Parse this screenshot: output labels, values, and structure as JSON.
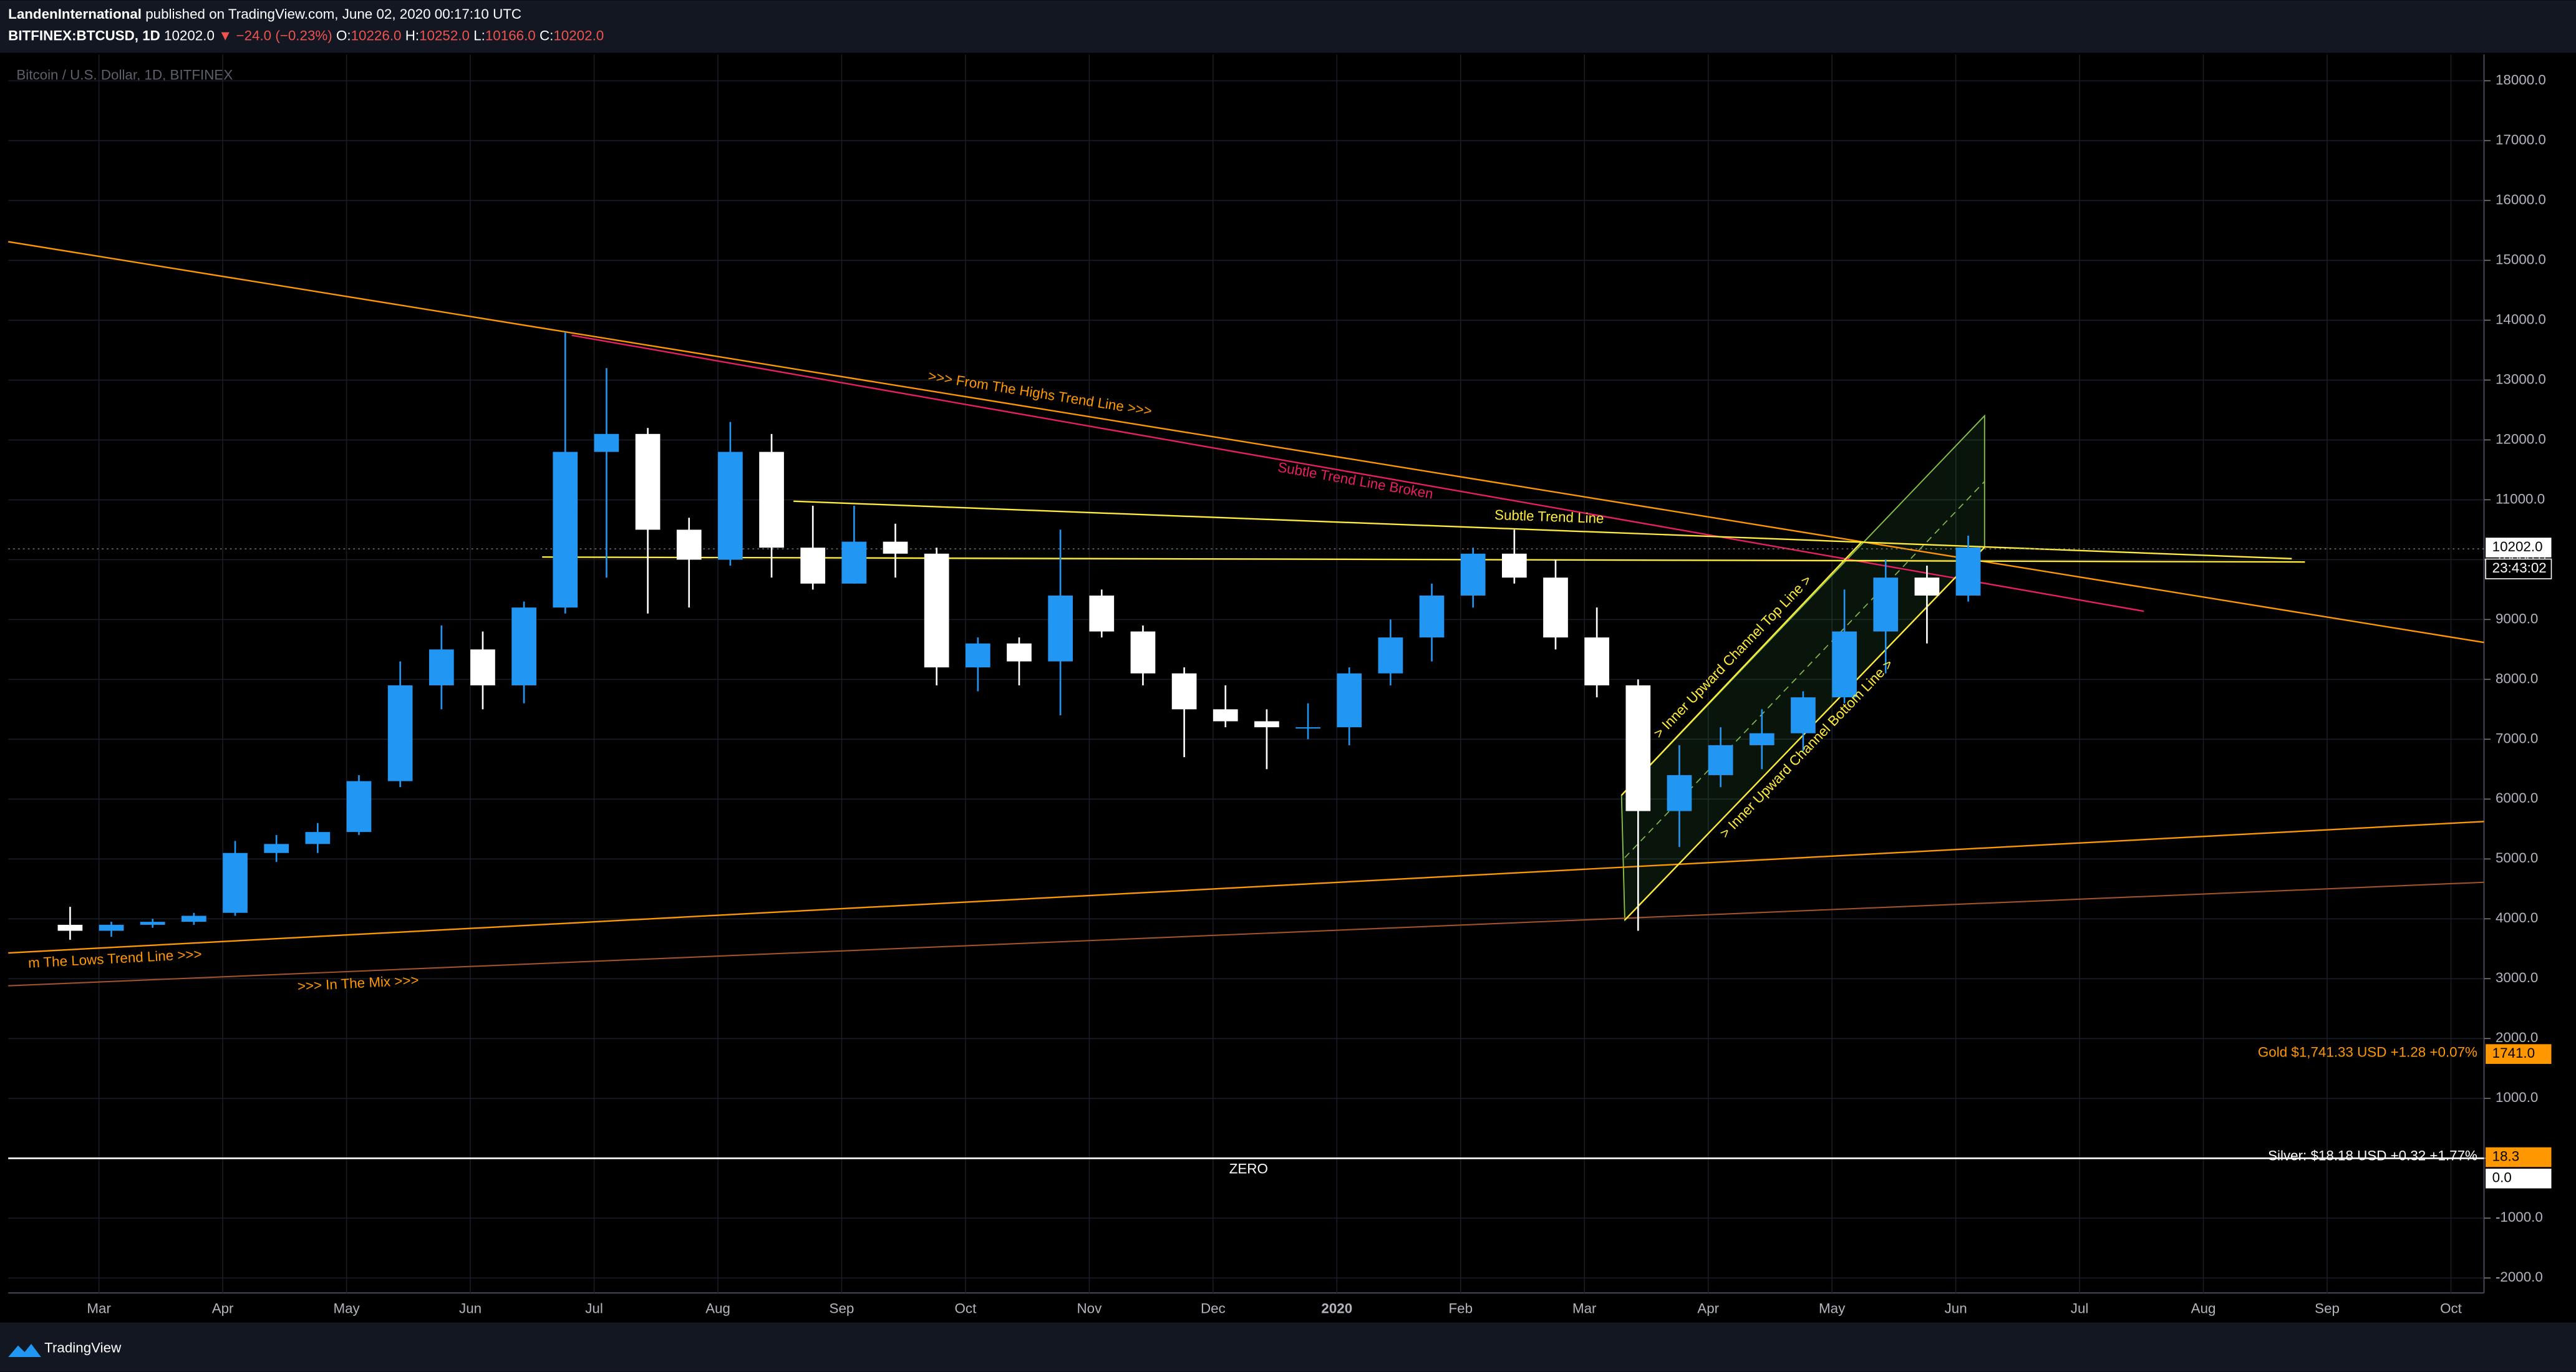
{
  "header": {
    "author": "LandenInternational",
    "published": "published on TradingView.com, June 02, 2020 00:17:10 UTC",
    "symbol": "BITFINEX:BTCUSD, 1D",
    "last": "10202.0",
    "change": "▼ −24.0 (−0.23%)",
    "ohlc": [
      {
        "label": "O:",
        "value": "10226.0"
      },
      {
        "label": "H:",
        "value": "10252.0"
      },
      {
        "label": "L:",
        "value": "10166.0"
      },
      {
        "label": "C:",
        "value": "10202.0"
      }
    ]
  },
  "chart_data": {
    "type": "candlestick",
    "watermark": "Bitcoin / U.S. Dollar, 1D, BITFINEX",
    "categories": [
      null,
      null,
      "Mar",
      null,
      null,
      "Apr",
      null,
      null,
      "May",
      null,
      null,
      "Jun",
      null,
      null,
      "Jul",
      null,
      null,
      "Aug",
      null,
      null,
      "Sep",
      null,
      null,
      "Oct",
      null,
      null,
      "Nov",
      null,
      null,
      "Dec",
      null,
      null,
      "2020",
      null,
      null,
      "Feb",
      null,
      null,
      "Mar",
      null,
      null,
      "Apr",
      null,
      null,
      "May",
      null,
      null,
      "Jun",
      null,
      null,
      "Jul",
      null,
      null,
      "Aug",
      null,
      null,
      "Sep",
      null,
      null,
      "Oct"
    ],
    "open": [
      null,
      3900,
      3800,
      3900,
      3950,
      4100,
      5100,
      5250,
      5450,
      6300,
      7900,
      8500,
      7900,
      9200,
      11800,
      12100,
      10500,
      10000,
      11800,
      10200,
      9600,
      10300,
      10100,
      8200,
      8600,
      8300,
      9400,
      8800,
      8100,
      7500,
      7300,
      7200,
      7200,
      8100,
      8700,
      9400,
      10100,
      9700,
      8700,
      7900,
      5800,
      6400,
      6900,
      7100,
      7700,
      8800,
      9700,
      9400,
      null,
      null,
      null,
      null,
      null,
      null,
      null,
      null,
      null,
      null,
      null,
      null
    ],
    "high": [
      null,
      4200,
      3950,
      4000,
      4100,
      5300,
      5400,
      5600,
      6400,
      8300,
      8900,
      8800,
      9300,
      13800,
      13200,
      12200,
      10700,
      12300,
      12100,
      10900,
      10900,
      10600,
      10200,
      8700,
      8700,
      10500,
      9500,
      8900,
      8200,
      7900,
      7500,
      7600,
      8200,
      9000,
      9600,
      10200,
      10500,
      10000,
      9200,
      8000,
      6900,
      7200,
      7500,
      7800,
      9500,
      10000,
      9900,
      10400,
      null,
      null,
      null,
      null,
      null,
      null,
      null,
      null,
      null,
      null,
      null,
      null
    ],
    "low": [
      null,
      3650,
      3700,
      3850,
      3900,
      4050,
      4950,
      5100,
      5400,
      6200,
      7500,
      7500,
      7600,
      9100,
      9700,
      9100,
      9200,
      9900,
      9700,
      9500,
      9600,
      9700,
      7900,
      7800,
      7900,
      7400,
      8700,
      7900,
      6700,
      7200,
      6500,
      7000,
      6900,
      7900,
      8300,
      9200,
      9600,
      8500,
      7700,
      3800,
      5200,
      6200,
      6500,
      6800,
      7600,
      8100,
      8600,
      9300,
      null,
      null,
      null,
      null,
      null,
      null,
      null,
      null,
      null,
      null,
      null,
      null
    ],
    "close": [
      null,
      3800,
      3900,
      3950,
      4050,
      5100,
      5250,
      5450,
      6300,
      7900,
      8500,
      7900,
      9200,
      11800,
      12100,
      10500,
      10000,
      11800,
      10200,
      9600,
      10300,
      10100,
      8200,
      8600,
      8300,
      9400,
      8800,
      8100,
      7500,
      7300,
      7200,
      7200,
      8100,
      8700,
      9400,
      10100,
      9700,
      8700,
      7900,
      5800,
      6400,
      6900,
      7100,
      7700,
      8800,
      9700,
      9400,
      10202,
      null,
      null,
      null,
      null,
      null,
      null,
      null,
      null,
      null,
      null,
      null,
      null
    ],
    "up_color": "#2196f3",
    "down_color": "#ffffff",
    "ylim": [
      -2250,
      18440
    ],
    "yticks": [
      {
        "value": 18000,
        "label": "18000.0"
      },
      {
        "value": 17000,
        "label": "17000.0"
      },
      {
        "value": 16000,
        "label": "16000.0"
      },
      {
        "value": 15000,
        "label": "15000.0"
      },
      {
        "value": 14000,
        "label": "14000.0"
      },
      {
        "value": 13000,
        "label": "13000.0"
      },
      {
        "value": 12000,
        "label": "12000.0"
      },
      {
        "value": 11000,
        "label": "11000.0"
      },
      {
        "value": 10000,
        "label": "10000.0"
      },
      {
        "value": 9000,
        "label": "9000.0"
      },
      {
        "value": 8000,
        "label": "8000.0"
      },
      {
        "value": 7000,
        "label": "7000.0"
      },
      {
        "value": 6000,
        "label": "6000.0"
      },
      {
        "value": 5000,
        "label": "5000.0"
      },
      {
        "value": 4000,
        "label": "4000.0"
      },
      {
        "value": 3000,
        "label": "3000.0"
      },
      {
        "value": 2000,
        "label": "2000.0"
      },
      {
        "value": 1000,
        "label": "1000.0"
      },
      {
        "value": 0,
        "label": "0.0"
      },
      {
        "value": -1000,
        "label": "-1000.0"
      },
      {
        "value": -2000,
        "label": "-2000.0"
      }
    ],
    "grid": true,
    "price_labels": [
      {
        "value": 10202,
        "label": "10202.0",
        "bg": "#ffffff",
        "fg": "#000000"
      },
      {
        "value": 1741,
        "label": "1741.0",
        "bg": "#ff9800",
        "fg": "#000000"
      },
      {
        "value": 18.3,
        "label": "18.3",
        "bg": "#ff9800",
        "fg": "#000000"
      },
      {
        "value": 0,
        "label": "0.0",
        "bg": "#ffffff",
        "fg": "#000000"
      }
    ],
    "countdown": "23:43:02",
    "annotations": [
      ">>> From The Highs Trend Line >>>",
      "Subtle Trend Line Broken",
      "Subtle Trend Line",
      "m The Lows Trend Line >>>",
      ">>> In The Mix >>>",
      "> Inner Upward Channel Top Line >",
      "> Inner Upward Channel Bottom Line >",
      "ZERO",
      "Gold  $1,741.33 USD +1.28 +0.07%",
      "Silver: $18.18 USD +0.32 +1.77%"
    ]
  },
  "footer": {
    "brand": "TradingView"
  }
}
